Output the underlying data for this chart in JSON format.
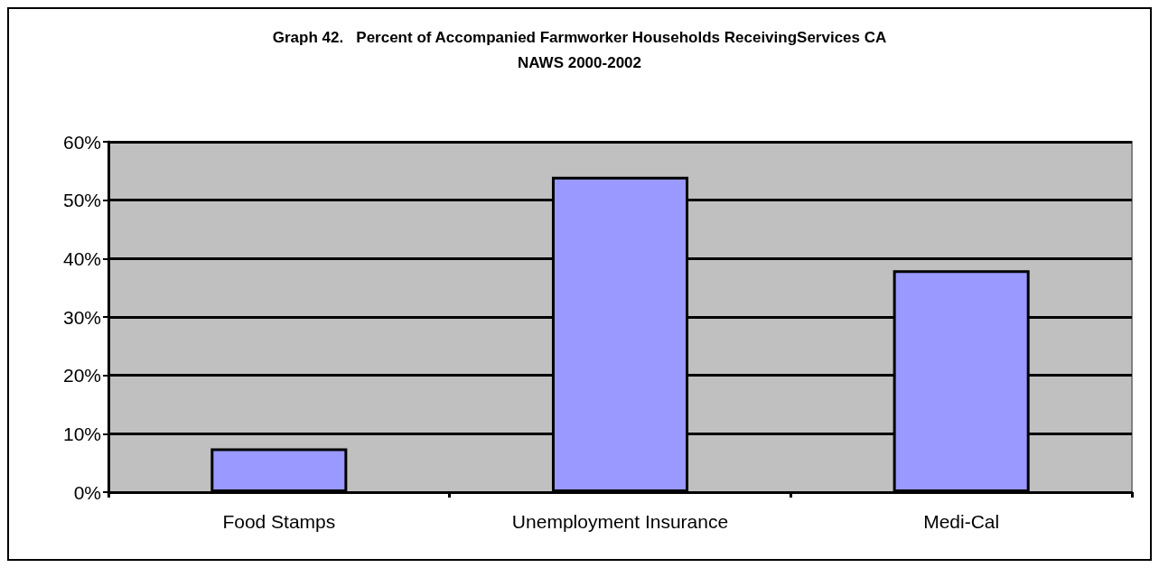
{
  "chart_data": {
    "type": "bar",
    "title": "Graph 42.   Percent of Accompanied Farmworker Households ReceivingServices CA\nNAWS 2000-2002",
    "categories": [
      "Food Stamps",
      "Unemployment Insurance",
      "Medi-Cal"
    ],
    "values": [
      7.5,
      54,
      38
    ],
    "color": "#9999ff",
    "ylim": [
      0,
      60
    ],
    "yticks": [
      {
        "value": 0,
        "label": "0%"
      },
      {
        "value": 10,
        "label": "10%"
      },
      {
        "value": 20,
        "label": "20%"
      },
      {
        "value": 30,
        "label": "30%"
      },
      {
        "value": 40,
        "label": "40%"
      },
      {
        "value": 50,
        "label": "50%"
      },
      {
        "value": 60,
        "label": "60%"
      }
    ],
    "grid": "y"
  }
}
